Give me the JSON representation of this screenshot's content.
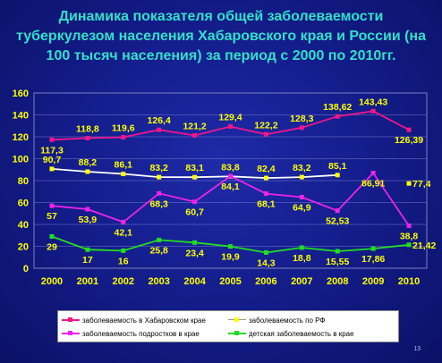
{
  "title_lines": [
    "Динамика показателя общей заболеваемости",
    "туберкулезом населения Хабаровского края и России (на",
    "100 тысяч населения) за период с 2000 по 2010гг."
  ],
  "slide_number": "13",
  "chart_data": {
    "type": "line",
    "title": "Динамика показателя общей заболеваемости туберкулезом населения Хабаровского края и России (на 100 тысяч населения) за период с 2000 по 2010гг.",
    "categories": [
      "2000",
      "2001",
      "2002",
      "2003",
      "2004",
      "2005",
      "2006",
      "2007",
      "2008",
      "2009",
      "2010"
    ],
    "ylim": [
      0,
      160
    ],
    "yticks": [
      "0",
      "20",
      "40",
      "60",
      "80",
      "100",
      "120",
      "140",
      "160"
    ],
    "grid": true,
    "legend_position": "bottom",
    "series": [
      {
        "name": "заболеваемость в Хабаровском крае",
        "color": "#f0168c",
        "marker": "#f0168c",
        "values": [
          117.3,
          118.8,
          119.6,
          126.4,
          121.2,
          129.4,
          122.2,
          128.3,
          138.62,
          143.43,
          126.39
        ],
        "labels": [
          "117,3",
          "118,8",
          "119,6",
          "126,4",
          "121,2",
          "129,4",
          "122,2",
          "128,3",
          "138,62",
          "143,43",
          "126,39"
        ],
        "label_pos": [
          "below",
          "above",
          "above",
          "above",
          "above",
          "above",
          "above",
          "above",
          "above",
          "above",
          "below"
        ]
      },
      {
        "name": "заболеваемость по РФ",
        "color": "#ffffff",
        "marker": "#ffff00",
        "values": [
          90.7,
          88.2,
          86.1,
          83.2,
          83.1,
          83.8,
          82.4,
          83.2,
          85.1,
          null,
          77.4
        ],
        "labels": [
          "90,7",
          "88,2",
          "86,1",
          "83,2",
          "83,1",
          "83,8",
          "82,4",
          "83,2",
          "85,1",
          "",
          "77,4"
        ],
        "label_pos": [
          "above",
          "above",
          "above",
          "above",
          "above",
          "above",
          "above",
          "above",
          "above",
          "above",
          "right"
        ]
      },
      {
        "name": "заболеваемость подростков в крае",
        "color": "#ee22ee",
        "marker": "#ee22ee",
        "values": [
          57,
          53.9,
          42.1,
          68.3,
          60.7,
          84.1,
          68.1,
          64.9,
          52.53,
          86.91,
          38.8
        ],
        "labels": [
          "57",
          "53,9",
          "42,1",
          "68,3",
          "60,7",
          "84,1",
          "68,1",
          "64,9",
          "52,53",
          "86,91",
          "38,8"
        ],
        "label_pos": [
          "below",
          "below",
          "below",
          "below",
          "below",
          "below",
          "below",
          "below",
          "below",
          "below",
          "below"
        ]
      },
      {
        "name": "детская заболеваемость в крае",
        "color": "#22dd22",
        "marker": "#22dd22",
        "values": [
          29,
          17,
          16,
          25.8,
          23.4,
          19.9,
          14.3,
          18.8,
          15.55,
          17.86,
          21.42
        ],
        "labels": [
          "29",
          "17",
          "16",
          "25,8",
          "23,4",
          "19,9",
          "14,3",
          "18,8",
          "15,55",
          "17,86",
          "21,42"
        ],
        "label_pos": [
          "below",
          "below",
          "below",
          "below",
          "below",
          "below",
          "below",
          "below",
          "below",
          "below",
          "right"
        ]
      }
    ]
  }
}
